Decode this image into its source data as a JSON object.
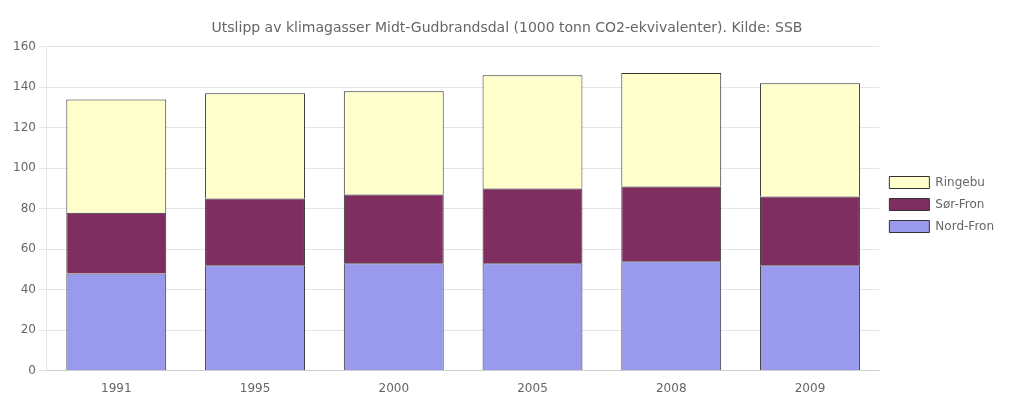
{
  "chart_data": {
    "type": "bar",
    "title": "Utslipp av klimagasser Midt-Gudbrandsdal (1000 tonn CO2-ekvivalenter). Kilde: SSB",
    "categories": [
      "1991",
      "1995",
      "2000",
      "2005",
      "2008",
      "2009"
    ],
    "series": [
      {
        "name": "Nord-Fron",
        "color": "#9999ee",
        "values": [
          48,
          52,
          53,
          53,
          54,
          52
        ]
      },
      {
        "name": "Sør-Fron",
        "color": "#7f2f5f",
        "values": [
          30,
          33,
          34,
          37,
          37,
          34
        ]
      },
      {
        "name": "Ringebu",
        "color": "#ffffcc",
        "values": [
          56,
          52,
          51,
          56,
          56,
          56
        ]
      }
    ],
    "stacked": true,
    "ylim": [
      0,
      160
    ],
    "yticks": [
      0,
      20,
      40,
      60,
      80,
      100,
      120,
      140,
      160
    ],
    "grid": true,
    "legend": "right"
  }
}
